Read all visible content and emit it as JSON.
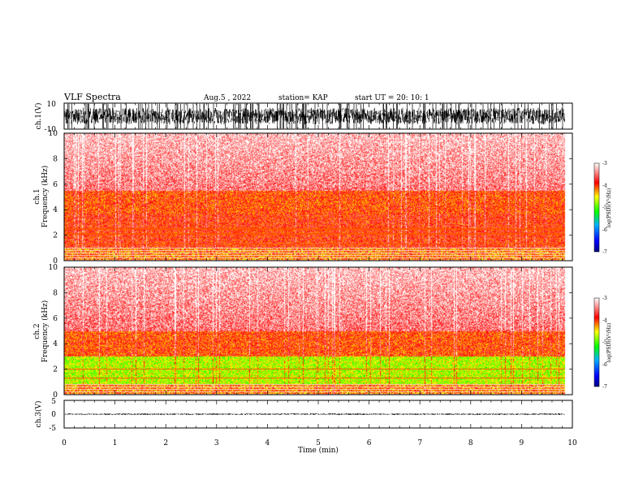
{
  "header": {
    "title": "VLF Spectra",
    "date": "Aug.5  , 2022",
    "station": "station= KAP",
    "start": "start  UT =   20: 10: 1"
  },
  "chart_data": [
    {
      "type": "line",
      "panel": "waveform-ch1",
      "ylabel": "ch.1(V)",
      "ylim": [
        -10,
        10
      ],
      "y_ticks": [
        "10",
        "-10"
      ],
      "trace_range": [
        -8,
        8
      ],
      "trace_color": "#000000"
    },
    {
      "type": "heatmap",
      "panel": "spectrogram-ch1",
      "ylabel": "ch.1\nFrequency  (kHz)",
      "ylim": [
        0,
        10
      ],
      "y_ticks": [
        "0",
        "2",
        "4",
        "6",
        "8",
        "10"
      ],
      "x_range_min": [
        0,
        9.85
      ],
      "colorbar": {
        "label": "log(PSD)(V²/Hz)",
        "range": [
          -7,
          -3
        ],
        "ticks": [
          "-3",
          "-4",
          "-5",
          "-6",
          "-7"
        ]
      },
      "bands": [
        {
          "freq_khz": [
            0.0,
            1.0
          ],
          "level": -4.2,
          "note": "interference lines"
        },
        {
          "freq_khz": [
            1.0,
            3.7
          ],
          "level": -3.9
        },
        {
          "freq_khz": [
            3.7,
            5.5
          ],
          "level": -4.0
        },
        {
          "freq_khz": [
            5.5,
            10.0
          ],
          "level": -3.5
        }
      ],
      "spectral_lines_khz": [
        1.3,
        2.1,
        2.5
      ]
    },
    {
      "type": "heatmap",
      "panel": "spectrogram-ch2",
      "ylabel": "ch.2\nFrequency  (kHz)",
      "ylim": [
        0,
        10
      ],
      "y_ticks": [
        "0",
        "2",
        "4",
        "6",
        "8",
        "10"
      ],
      "x_range_min": [
        0,
        9.85
      ],
      "colorbar": {
        "label": "log(PSD)(V²/Hz)",
        "range": [
          -7,
          -3
        ],
        "ticks": [
          "-3",
          "-4",
          "-5",
          "-6",
          "-7"
        ]
      },
      "bands": [
        {
          "freq_khz": [
            0.0,
            0.8
          ],
          "level": -4.2,
          "note": "interference lines"
        },
        {
          "freq_khz": [
            0.8,
            3.0
          ],
          "level": -4.7
        },
        {
          "freq_khz": [
            3.0,
            5.0
          ],
          "level": -4.0
        },
        {
          "freq_khz": [
            5.0,
            10.0
          ],
          "level": -3.5
        }
      ],
      "spectral_lines_khz": [
        1.3,
        2.0
      ]
    },
    {
      "type": "line",
      "panel": "waveform-ch3",
      "ylabel": "ch.3(V)",
      "ylim": [
        -5,
        5
      ],
      "y_ticks": [
        "5",
        "0",
        "-5"
      ],
      "trace_range": [
        -0.3,
        0.3
      ],
      "trace_color": "#000000"
    }
  ],
  "xaxis": {
    "label": "Time  (min)",
    "range": [
      0,
      10
    ],
    "ticks": [
      "0",
      "1",
      "2",
      "3",
      "4",
      "5",
      "6",
      "7",
      "8",
      "9",
      "10"
    ]
  }
}
